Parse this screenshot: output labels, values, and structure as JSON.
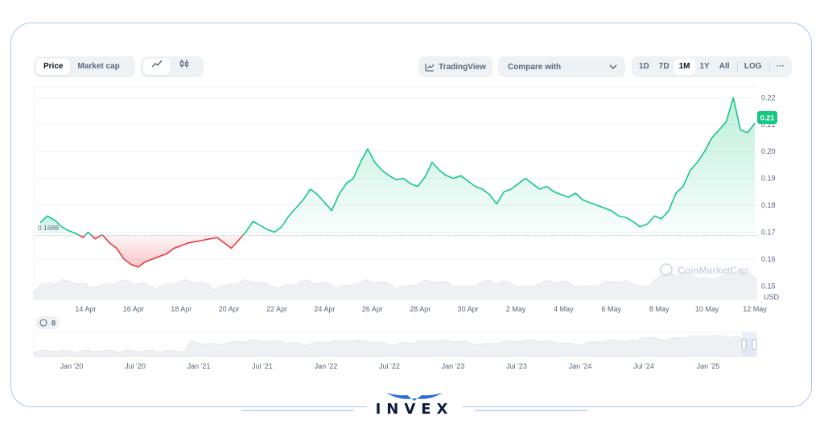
{
  "toolbar": {
    "metric_tabs": [
      "Price",
      "Market cap"
    ],
    "active_metric": "Price",
    "chart_type_icons": [
      "line-chart-icon",
      "candlestick-icon"
    ],
    "tradingview_label": "TradingView",
    "compare_placeholder": "Compare with",
    "ranges": [
      "1D",
      "7D",
      "1M",
      "1Y",
      "All",
      "LOG"
    ],
    "active_range": "1M",
    "more_label": "···"
  },
  "chart": {
    "start_price_label": "0.1688",
    "current_price_label": "0.21",
    "currency_label": "USD",
    "watermark": "CoinMarketCap",
    "events_count": "8",
    "colors": {
      "up": "#16c784",
      "down": "#ea3943",
      "grid": "#eff2f5",
      "axis_text": "#58667e"
    }
  },
  "chart_data": {
    "type": "line",
    "x_labels": [
      "14 Apr",
      "16 Apr",
      "18 Apr",
      "20 Apr",
      "22 Apr",
      "24 Apr",
      "26 Apr",
      "28 Apr",
      "30 Apr",
      "2 May",
      "4 May",
      "6 May",
      "8 May",
      "10 May",
      "12 May"
    ],
    "y_ticks": [
      "0.22",
      "0.21",
      "0.20",
      "0.19",
      "0.18",
      "0.17",
      "0.16",
      "0.15"
    ],
    "ylim": [
      0.145,
      0.224
    ],
    "baseline": 0.1688,
    "x_days": [
      0,
      0.3,
      0.6,
      0.9,
      1.2,
      1.5,
      1.8,
      2.0,
      2.3,
      2.6,
      2.9,
      3.2,
      3.5,
      3.8,
      4.1,
      4.4,
      4.7,
      5.0,
      5.3,
      5.6,
      5.9,
      6.2,
      6.5,
      6.8,
      7.1,
      7.4,
      7.7,
      8.0,
      8.3,
      8.6,
      8.9,
      9.2,
      9.5,
      9.8,
      10.1,
      10.4,
      10.7,
      11.0,
      11.3,
      11.6,
      11.9,
      12.2,
      12.5,
      12.8,
      13.1,
      13.4,
      13.7,
      14.0,
      14.3,
      14.6,
      14.9,
      15.2,
      15.5,
      15.8,
      16.1,
      16.4,
      16.7,
      17.0,
      17.3,
      17.6,
      17.9,
      18.2,
      18.5,
      18.8,
      19.1,
      19.4,
      19.7,
      20.0,
      20.3,
      20.6,
      20.9,
      21.2,
      21.5,
      21.8,
      22.1,
      22.4,
      22.7,
      23.0,
      23.3,
      23.6,
      23.9,
      24.2,
      24.5,
      24.8,
      25.1,
      25.4,
      25.7,
      26.0,
      26.3,
      26.6,
      26.9,
      27.2,
      27.5,
      27.8,
      28.1,
      28.4,
      28.7,
      29.0,
      29.3,
      29.6,
      29.9
    ],
    "values": [
      0.1735,
      0.176,
      0.1745,
      0.172,
      0.1705,
      0.1695,
      0.168,
      0.17,
      0.1675,
      0.169,
      0.166,
      0.164,
      0.16,
      0.158,
      0.157,
      0.159,
      0.16,
      0.161,
      0.162,
      0.164,
      0.165,
      0.166,
      0.1665,
      0.167,
      0.1675,
      0.168,
      0.166,
      0.164,
      0.167,
      0.17,
      0.174,
      0.1725,
      0.171,
      0.17,
      0.172,
      0.176,
      0.179,
      0.182,
      0.186,
      0.184,
      0.181,
      0.178,
      0.184,
      0.188,
      0.19,
      0.196,
      0.201,
      0.196,
      0.193,
      0.191,
      0.1895,
      0.19,
      0.188,
      0.187,
      0.1905,
      0.196,
      0.193,
      0.191,
      0.19,
      0.191,
      0.189,
      0.187,
      0.186,
      0.184,
      0.1805,
      0.185,
      0.186,
      0.188,
      0.19,
      0.188,
      0.186,
      0.187,
      0.185,
      0.184,
      0.183,
      0.1845,
      0.182,
      0.181,
      0.18,
      0.179,
      0.178,
      0.176,
      0.1755,
      0.174,
      0.172,
      0.173,
      0.176,
      0.175,
      0.178,
      0.1845,
      0.187,
      0.193,
      0.196,
      0.2,
      0.205,
      0.208,
      0.211,
      0.22,
      0.208,
      0.207,
      0.2105
    ]
  },
  "navigator": {
    "labels": [
      "Jan '20",
      "Jul '20",
      "Jan '21",
      "Jul '21",
      "Jan '22",
      "Jul '22",
      "Jan '23",
      "Jul '23",
      "Jan '24",
      "Jul '24",
      "Jan '25"
    ]
  },
  "brand": {
    "logo_text": "INVEX"
  }
}
